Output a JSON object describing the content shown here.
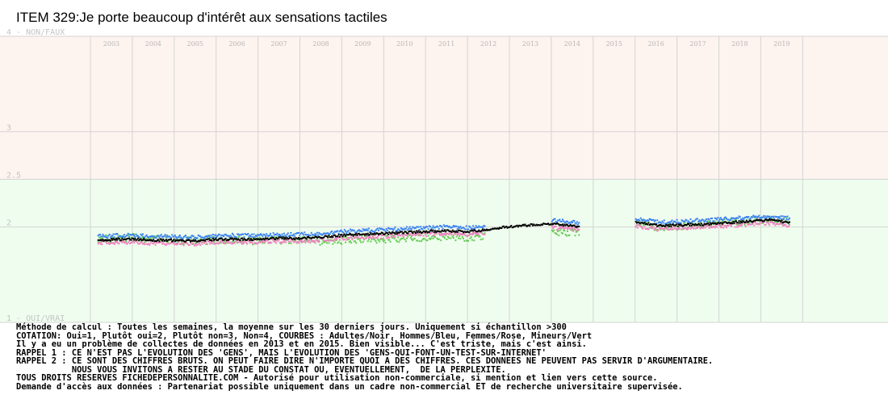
{
  "title": "ITEM 329:Je porte beaucoup d'intérêt aux sensations tactiles",
  "notes": [
    "Méthode de calcul : Toutes les semaines, la moyenne sur les 30 derniers jours. Uniquement si échantillon >300",
    "COTATION: Oui=1, Plutôt oui=2, Plutôt non=3, Non=4, COURBES : Adultes/Noir, Hommes/Bleu, Femmes/Rose, Mineurs/Vert",
    "Il y a eu un problème de collectes de données en 2013 et en 2015. Bien visible... C'est triste, mais c'est ainsi.",
    "RAPPEL 1 : CE N'EST PAS L'EVOLUTION DES 'GENS', MAIS L'EVOLUTION DES 'GENS-QUI-FONT-UN-TEST-SUR-INTERNET'",
    "RAPPEL 2 : CE SONT DES CHIFFRES BRUTS. ON PEUT FAIRE DIRE N'IMPORTE QUOI A DES CHIFFRES. CES DONNEES NE PEUVENT PAS SERVIR D'ARGUMENTAIRE.",
    "           NOUS VOUS INVITONS A RESTER AU STADE DU CONSTAT OU, EVENTUELLEMENT,  DE LA PERPLEXITE.",
    "TOUS DROITS RESERVES FICHEDEPERSONNALITE.COM - Autorisé pour utilisation non-commerciale, si mention et lien vers cette source.",
    "Demande d'accès aux données : Partenariat possible uniquement dans un cadre non-commercial ET de recherche universitaire supervisée."
  ],
  "chart_data": {
    "type": "scatter",
    "title": "ITEM 329:Je porte beaucoup d'intérêt aux sensations tactiles",
    "x_axis": {
      "type": "time",
      "tick_labels": [
        "2003",
        "2004",
        "2005",
        "2006",
        "2007",
        "2008",
        "2009",
        "2010",
        "2011",
        "2012",
        "2013",
        "2014",
        "2015",
        "2016",
        "2017",
        "2018",
        "2019"
      ],
      "range": [
        "2003-01",
        "2020-01"
      ]
    },
    "y_axis": {
      "inverted": true,
      "range": [
        1,
        4
      ],
      "tick_labels": [
        {
          "value": 4,
          "label": "4 - NON/FAUX"
        },
        {
          "value": 3,
          "label": "3"
        },
        {
          "value": 2.5,
          "label": "2.5"
        },
        {
          "value": 2,
          "label": "2"
        },
        {
          "value": 1,
          "label": "1 - OUI/VRAI"
        }
      ]
    },
    "bands": [
      {
        "from": 2.5,
        "to": 4,
        "color": "#fdf3ef"
      },
      {
        "from": 1,
        "to": 2.5,
        "color": "#effdee"
      }
    ],
    "gridlines": true,
    "legend": "none",
    "series": [
      {
        "key": "adultes",
        "color": "#000000",
        "points": [
          [
            "2003-03",
            1.87
          ],
          [
            "2003-09",
            1.88
          ],
          [
            "2004-01",
            1.88
          ],
          [
            "2004-06",
            1.87
          ],
          [
            "2005-01",
            1.87
          ],
          [
            "2005-06",
            1.86
          ],
          [
            "2006-01",
            1.88
          ],
          [
            "2006-06",
            1.88
          ],
          [
            "2007-01",
            1.88
          ],
          [
            "2007-06",
            1.89
          ],
          [
            "2008-01",
            1.89
          ],
          [
            "2008-06",
            1.9
          ],
          [
            "2009-01",
            1.92
          ],
          [
            "2009-06",
            1.93
          ],
          [
            "2010-01",
            1.94
          ],
          [
            "2010-06",
            1.95
          ],
          [
            "2011-01",
            1.96
          ],
          [
            "2011-06",
            1.97
          ],
          [
            "2012-01",
            1.96
          ],
          [
            "2012-06",
            1.98
          ],
          [
            "2012-10",
            2.0
          ],
          [
            "2013-03",
            2.02
          ],
          [
            "2014-01",
            2.04
          ],
          [
            "2014-09",
            2.01
          ],
          [
            "2016-01",
            2.06
          ],
          [
            "2016-08",
            2.02
          ],
          [
            "2017-03",
            2.03
          ],
          [
            "2017-10",
            2.04
          ],
          [
            "2018-06",
            2.06
          ],
          [
            "2019-03",
            2.08
          ],
          [
            "2019-09",
            2.06
          ]
        ]
      },
      {
        "key": "hommes",
        "color": "#3b82f0",
        "points": [
          [
            "2003-03",
            1.91
          ],
          [
            "2003-09",
            1.92
          ],
          [
            "2004-01",
            1.92
          ],
          [
            "2004-06",
            1.91
          ],
          [
            "2005-01",
            1.91
          ],
          [
            "2005-06",
            1.9
          ],
          [
            "2006-01",
            1.92
          ],
          [
            "2006-06",
            1.92
          ],
          [
            "2007-01",
            1.92
          ],
          [
            "2007-06",
            1.93
          ],
          [
            "2008-01",
            1.93
          ],
          [
            "2008-06",
            1.94
          ],
          [
            "2009-01",
            1.96
          ],
          [
            "2009-06",
            1.97
          ],
          [
            "2010-01",
            1.98
          ],
          [
            "2010-06",
            1.99
          ],
          [
            "2011-01",
            2.0
          ],
          [
            "2011-06",
            2.01
          ],
          [
            "2012-01",
            2.0
          ],
          [
            "2012-06",
            2.02
          ],
          [
            "2014-01",
            2.08
          ],
          [
            "2014-09",
            2.05
          ],
          [
            "2016-01",
            2.1
          ],
          [
            "2016-08",
            2.06
          ],
          [
            "2017-03",
            2.07
          ],
          [
            "2017-10",
            2.08
          ],
          [
            "2018-06",
            2.1
          ],
          [
            "2019-03",
            2.12
          ],
          [
            "2019-09",
            2.1
          ]
        ]
      },
      {
        "key": "femmes",
        "color": "#f080c0",
        "points": [
          [
            "2003-03",
            1.84
          ],
          [
            "2003-09",
            1.85
          ],
          [
            "2004-01",
            1.85
          ],
          [
            "2004-06",
            1.84
          ],
          [
            "2005-01",
            1.84
          ],
          [
            "2005-06",
            1.83
          ],
          [
            "2006-01",
            1.85
          ],
          [
            "2006-06",
            1.85
          ],
          [
            "2007-01",
            1.85
          ],
          [
            "2007-06",
            1.86
          ],
          [
            "2008-01",
            1.86
          ],
          [
            "2008-06",
            1.87
          ],
          [
            "2009-01",
            1.89
          ],
          [
            "2009-06",
            1.9
          ],
          [
            "2010-01",
            1.91
          ],
          [
            "2010-06",
            1.92
          ],
          [
            "2011-01",
            1.93
          ],
          [
            "2011-06",
            1.94
          ],
          [
            "2012-01",
            1.93
          ],
          [
            "2012-06",
            1.95
          ],
          [
            "2014-01",
            2.0
          ],
          [
            "2014-09",
            1.98
          ],
          [
            "2016-01",
            2.02
          ],
          [
            "2016-08",
            1.98
          ],
          [
            "2017-03",
            2.0
          ],
          [
            "2017-10",
            2.01
          ],
          [
            "2018-06",
            2.03
          ],
          [
            "2019-03",
            2.05
          ],
          [
            "2019-09",
            2.03
          ]
        ]
      },
      {
        "key": "mineurs",
        "color": "#66cc55",
        "points": [
          [
            "2003-03",
            1.88
          ],
          [
            "2003-09",
            1.89
          ],
          [
            "2004-01",
            1.9
          ],
          [
            "2004-06",
            1.88
          ],
          [
            "2005-01",
            1.87
          ],
          [
            "2005-06",
            1.86
          ],
          [
            "2006-01",
            1.87
          ],
          [
            "2006-06",
            1.87
          ],
          [
            "2007-01",
            1.86
          ],
          [
            "2007-06",
            1.87
          ],
          [
            "2008-01",
            1.87
          ],
          [
            "2008-06",
            1.86
          ],
          [
            "2009-01",
            1.87
          ],
          [
            "2009-06",
            1.88
          ],
          [
            "2010-01",
            1.88
          ],
          [
            "2010-06",
            1.89
          ],
          [
            "2011-01",
            1.9
          ],
          [
            "2011-06",
            1.91
          ],
          [
            "2012-01",
            1.9
          ],
          [
            "2012-06",
            1.92
          ],
          [
            "2014-01",
            1.96
          ],
          [
            "2014-09",
            1.95
          ],
          [
            "2016-01",
            2.05
          ],
          [
            "2016-08",
            2.0
          ],
          [
            "2017-03",
            2.02
          ],
          [
            "2017-10",
            2.04
          ],
          [
            "2018-06",
            2.06
          ],
          [
            "2019-03",
            2.08
          ],
          [
            "2019-09",
            2.06
          ]
        ]
      }
    ]
  }
}
